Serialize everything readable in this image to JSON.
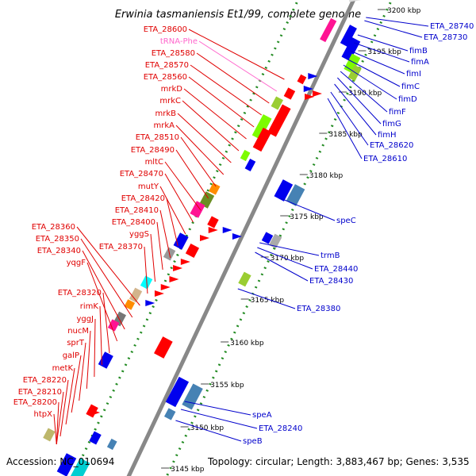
{
  "title": "Erwinia tasmaniensis Et1/99, complete genome",
  "accession": "Accession: NC_010694",
  "topology": "Topology: circular; Length: 3,883,467 bp; Genes: 3,535",
  "colors": {
    "left_label": "#e00000",
    "right_label": "#0000cc",
    "trna_label": "#ff66cc",
    "backbone": "#888888",
    "dots": "#228b22"
  },
  "ticks": [
    {
      "label": "3200 kbp"
    },
    {
      "label": "3195 kbp"
    },
    {
      "label": "3190 kbp"
    },
    {
      "label": "3185 kbp"
    },
    {
      "label": "3180 kbp"
    },
    {
      "label": "3175 kbp"
    },
    {
      "label": "3170 kbp"
    },
    {
      "label": "3165 kbp"
    },
    {
      "label": "3160 kbp"
    },
    {
      "label": "3155 kbp"
    },
    {
      "label": "3150 kbp"
    },
    {
      "label": "3145 kbp"
    }
  ],
  "left_labels": [
    "ETA_28600",
    "tRNA-Phe",
    "ETA_28580",
    "ETA_28570",
    "ETA_28560",
    "mrkD",
    "mrkC",
    "mrkB",
    "mrkA",
    "ETA_28510",
    "ETA_28490",
    "mltC",
    "ETA_28470",
    "mutY",
    "ETA_28420",
    "ETA_28410",
    "ETA_28400",
    "yggS",
    "ETA_28370",
    "ETA_28360",
    "ETA_28350",
    "ETA_28340",
    "yqgF",
    "ETA_28320",
    "rimK",
    "yggJ",
    "nucM",
    "sprT",
    "galP",
    "metK",
    "ETA_28220",
    "ETA_28210",
    "ETA_28200",
    "htpX"
  ],
  "right_labels": [
    "ETA_28740",
    "ETA_28730",
    "fimB",
    "fimA",
    "fimI",
    "fimC",
    "fimD",
    "fimF",
    "fimG",
    "fimH",
    "ETA_28620",
    "ETA_28610",
    "speC",
    "trmB",
    "ETA_28440",
    "ETA_28430",
    "ETA_28380",
    "speA",
    "ETA_28240",
    "speB"
  ]
}
